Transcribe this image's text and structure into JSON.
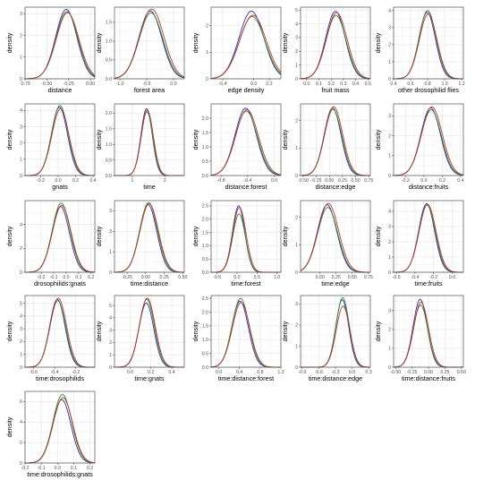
{
  "chart_data": {
    "type": "line",
    "layout": "5 rows x 5 columns of density panels, last row has one panel",
    "grid": true,
    "series_colors": {
      "chain_1": "#2f2fb0",
      "chain_2": "#2e8b2e",
      "chain_3": "#c0392b"
    },
    "panels": [
      {
        "xlabel": "distance",
        "ylabel": "density",
        "xlim": [
          -0.75,
          0.05
        ],
        "ylim": [
          0,
          3.3
        ],
        "xticks": [
          "-0.75",
          "-0.50",
          "-0.25",
          "0.00"
        ],
        "yticks": [
          "0",
          "1",
          "2",
          "3"
        ],
        "mean": -0.27,
        "sd": 0.125,
        "peaks": [
          3.2,
          3.1,
          3.05
        ]
      },
      {
        "xlabel": "forest area",
        "ylabel": "density",
        "xlim": [
          -1.1,
          0.2
        ],
        "ylim": [
          0,
          1.9
        ],
        "xticks": [
          "-1.0",
          "-0.5",
          "0.0"
        ],
        "yticks": [
          "0.0",
          "0.5",
          "1.0",
          "1.5"
        ],
        "mean": -0.42,
        "sd": 0.22,
        "peaks": [
          1.8,
          1.75,
          1.85
        ]
      },
      {
        "xlabel": "edge density",
        "ylabel": "density",
        "xlim": [
          -0.55,
          0.35
        ],
        "ylim": [
          0,
          2.7
        ],
        "xticks": [
          "-0.4",
          "0.0",
          "0.2"
        ],
        "yticks": [
          "0",
          "1",
          "2"
        ],
        "mean": -0.02,
        "sd": 0.165,
        "peaks": [
          2.55,
          2.35,
          2.4
        ]
      },
      {
        "xlabel": "fruit mass",
        "ylabel": "density",
        "xlim": [
          -0.05,
          0.52
        ],
        "ylim": [
          0,
          5.2
        ],
        "xticks": [
          "0.0",
          "0.1",
          "0.2",
          "0.3",
          "0.4",
          "0.5"
        ],
        "yticks": [
          "0",
          "1",
          "2",
          "3",
          "4",
          "5"
        ],
        "mean": 0.24,
        "sd": 0.082,
        "peaks": [
          4.9,
          4.6,
          4.8
        ]
      },
      {
        "xlabel": "other drosophilid flies",
        "ylabel": "density",
        "xlim": [
          0.4,
          1.22
        ],
        "ylim": [
          0,
          4.2
        ],
        "xticks": [
          "0.4",
          "0.6",
          "0.8",
          "1.0",
          "1.2"
        ],
        "yticks": [
          "0",
          "1",
          "2",
          "3",
          "4"
        ],
        "mean": 0.8,
        "sd": 0.1,
        "peaks": [
          3.9,
          4.0,
          3.8
        ]
      },
      {
        "xlabel": "gnats",
        "ylabel": "density",
        "xlim": [
          -0.38,
          0.42
        ],
        "ylim": [
          0,
          4.4
        ],
        "xticks": [
          "-0.2",
          "0.0",
          "0.2",
          "0.4"
        ],
        "yticks": [
          "0",
          "1",
          "2",
          "3",
          "4"
        ],
        "mean": 0.02,
        "sd": 0.095,
        "peaks": [
          4.2,
          4.3,
          4.1
        ]
      },
      {
        "xlabel": "time",
        "ylabel": "density",
        "xlim": [
          0.45,
          2.6
        ],
        "ylim": [
          0,
          2.3
        ],
        "xticks": [
          "1",
          "2"
        ],
        "yticks": [
          "0.0",
          "0.5",
          "1.0",
          "1.5",
          "2.0"
        ],
        "mean": 1.45,
        "sd": 0.18,
        "peaks": [
          2.15,
          2.05,
          2.1
        ]
      },
      {
        "xlabel": "distance:forest",
        "ylabel": "density",
        "xlim": [
          -0.95,
          0.1
        ],
        "ylim": [
          0,
          2.5
        ],
        "xticks": [
          "-0.8",
          "-0.4",
          "0.0"
        ],
        "yticks": [
          "0.0",
          "0.5",
          "1.0",
          "1.5",
          "2.0"
        ],
        "mean": -0.42,
        "sd": 0.165,
        "peaks": [
          2.35,
          2.25,
          2.3
        ]
      },
      {
        "xlabel": "distance:edge",
        "ylabel": "density",
        "xlim": [
          -0.55,
          0.78
        ],
        "ylim": [
          0,
          2.6
        ],
        "xticks": [
          "-0.50",
          "-0.25",
          "0.00",
          "0.25",
          "0.50",
          "0.75"
        ],
        "yticks": [
          "0",
          "1",
          "2"
        ],
        "mean": 0.07,
        "sd": 0.165,
        "peaks": [
          2.45,
          2.4,
          2.5
        ]
      },
      {
        "xlabel": "distance:fruits",
        "ylabel": "density",
        "xlim": [
          -0.33,
          0.43
        ],
        "ylim": [
          0,
          3.6
        ],
        "xticks": [
          "-0.2",
          "0.0",
          "0.2",
          "0.4"
        ],
        "yticks": [
          "0",
          "1",
          "2",
          "3"
        ],
        "mean": 0.08,
        "sd": 0.11,
        "peaks": [
          3.4,
          3.3,
          3.45
        ]
      },
      {
        "xlabel": "drosophilids:gnats",
        "ylabel": "density",
        "xlim": [
          -0.33,
          0.23
        ],
        "ylim": [
          0,
          6.0
        ],
        "xticks": [
          "-0.2",
          "-0.1",
          "0.0",
          "0.1",
          "0.2"
        ],
        "yticks": [
          "0",
          "2",
          "4"
        ],
        "mean": -0.04,
        "sd": 0.072,
        "peaks": [
          5.5,
          5.8,
          5.6
        ]
      },
      {
        "xlabel": "time:distance",
        "ylabel": "density",
        "xlim": [
          -0.42,
          0.52
        ],
        "ylim": [
          0,
          3.5
        ],
        "xticks": [
          "-0.25",
          "0.00",
          "0.25",
          "0.50"
        ],
        "yticks": [
          "0",
          "1",
          "2",
          "3"
        ],
        "mean": 0.04,
        "sd": 0.12,
        "peaks": [
          3.3,
          3.4,
          3.35
        ]
      },
      {
        "xlabel": "time:forest",
        "ylabel": "density",
        "xlim": [
          -0.65,
          1.1
        ],
        "ylim": [
          0,
          2.7
        ],
        "xticks": [
          "-0.5",
          "0.0",
          "0.5",
          "1.0"
        ],
        "yticks": [
          "0.0",
          "0.5",
          "1.0",
          "1.5",
          "2.0",
          "2.5"
        ],
        "mean": 0.05,
        "sd": 0.16,
        "peaks": [
          2.5,
          2.2,
          2.45
        ]
      },
      {
        "xlabel": "time:edge",
        "ylabel": "density",
        "xlim": [
          -0.3,
          0.78
        ],
        "ylim": [
          0,
          2.6
        ],
        "xticks": [
          "0.00",
          "0.25",
          "0.50",
          "0.75"
        ],
        "yticks": [
          "0",
          "1",
          "2"
        ],
        "mean": 0.12,
        "sd": 0.155,
        "peaks": [
          2.45,
          2.35,
          2.5
        ]
      },
      {
        "xlabel": "time:fruits",
        "ylabel": "density",
        "xlim": [
          -0.63,
          0.12
        ],
        "ylim": [
          0,
          4.7
        ],
        "xticks": [
          "-0.6",
          "-0.4",
          "-0.2",
          "0.0"
        ],
        "yticks": [
          "0",
          "1",
          "2",
          "3",
          "4"
        ],
        "mean": -0.27,
        "sd": 0.088,
        "peaks": [
          4.5,
          4.4,
          4.45
        ]
      },
      {
        "xlabel": "time:drosophilids",
        "ylabel": "density",
        "xlim": [
          -0.68,
          -0.02
        ],
        "ylim": [
          0,
          5.6
        ],
        "xticks": [
          "-0.6",
          "-0.4",
          "-0.2"
        ],
        "yticks": [
          "0",
          "1",
          "2",
          "3",
          "4",
          "5"
        ],
        "mean": -0.37,
        "sd": 0.075,
        "peaks": [
          5.3,
          5.2,
          5.4
        ]
      },
      {
        "xlabel": "time:gnats",
        "ylabel": "density",
        "xlim": [
          -0.15,
          0.52
        ],
        "ylim": [
          0,
          5.8
        ],
        "xticks": [
          "0.0",
          "0.2",
          "0.4"
        ],
        "yticks": [
          "0",
          "1",
          "2",
          "3",
          "4",
          "5"
        ],
        "mean": 0.16,
        "sd": 0.073,
        "peaks": [
          5.2,
          5.5,
          5.6
        ]
      },
      {
        "xlabel": "time:distance:forest",
        "ylabel": "density",
        "xlim": [
          -0.15,
          1.2
        ],
        "ylim": [
          0,
          2.6
        ],
        "xticks": [
          "0.0",
          "0.4",
          "0.8",
          "1.2"
        ],
        "yticks": [
          "0.0",
          "0.5",
          "1.0",
          "1.5",
          "2.0",
          "2.5"
        ],
        "mean": 0.42,
        "sd": 0.165,
        "peaks": [
          2.4,
          2.5,
          2.35
        ]
      },
      {
        "xlabel": "time:distance:edge",
        "ylabel": "density",
        "xlim": [
          -0.93,
          0.33
        ],
        "ylim": [
          0,
          3.4
        ],
        "xticks": [
          "-0.9",
          "-0.6",
          "-0.3",
          "0.0",
          "0.3"
        ],
        "yticks": [
          "0",
          "1",
          "2",
          "3"
        ],
        "mean": -0.17,
        "sd": 0.12,
        "peaks": [
          3.2,
          3.3,
          2.9
        ]
      },
      {
        "xlabel": "time:distance:fruits",
        "ylabel": "density",
        "xlim": [
          -0.53,
          0.53
        ],
        "ylim": [
          0,
          3.8
        ],
        "xticks": [
          "-0.50",
          "-0.25",
          "0.00",
          "0.25",
          "0.50"
        ],
        "yticks": [
          "0",
          "1",
          "2",
          "3"
        ],
        "mean": -0.12,
        "sd": 0.11,
        "peaks": [
          3.6,
          3.3,
          3.45
        ]
      },
      {
        "xlabel": "time:drosophilids:gnats",
        "ylabel": "density",
        "xlim": [
          -0.2,
          0.23
        ],
        "ylim": [
          0,
          7.0
        ],
        "xticks": [
          "-0.2",
          "-0.1",
          "0.0",
          "0.1",
          "0.2"
        ],
        "yticks": [
          "0",
          "2",
          "4",
          "6"
        ],
        "mean": 0.03,
        "sd": 0.058,
        "peaks": [
          6.2,
          6.7,
          6.4
        ]
      }
    ]
  }
}
